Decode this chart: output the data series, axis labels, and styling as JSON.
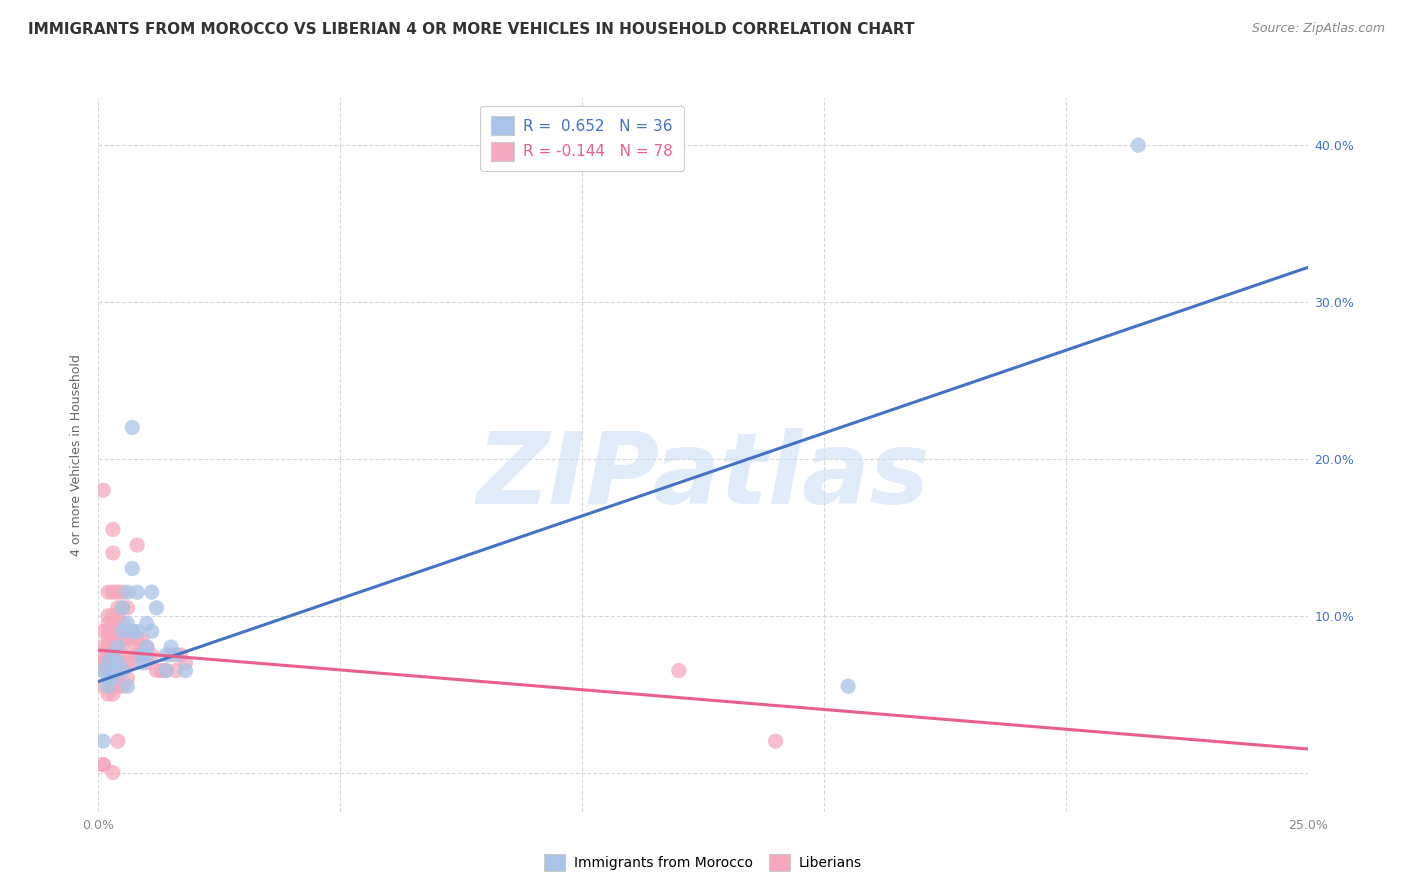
{
  "title": "IMMIGRANTS FROM MOROCCO VS LIBERIAN 4 OR MORE VEHICLES IN HOUSEHOLD CORRELATION CHART",
  "source": "Source: ZipAtlas.com",
  "ylabel": "4 or more Vehicles in Household",
  "morocco_R": 0.652,
  "morocco_N": 36,
  "liberian_R": -0.144,
  "liberian_N": 78,
  "morocco_color": "#a8c4e8",
  "liberian_color": "#f5a8bc",
  "morocco_line_color": "#4472c4",
  "liberian_line_color": "#e8608a",
  "watermark": "ZIPatlas",
  "xlim": [
    0.0,
    0.25
  ],
  "ylim": [
    -0.025,
    0.43
  ],
  "xticks": [
    0.0,
    0.05,
    0.1,
    0.15,
    0.2,
    0.25
  ],
  "yticks": [
    0.0,
    0.1,
    0.2,
    0.3,
    0.4
  ],
  "morocco_scatter": [
    [
      0.001,
      0.065
    ],
    [
      0.002,
      0.07
    ],
    [
      0.002,
      0.06
    ],
    [
      0.002,
      0.055
    ],
    [
      0.003,
      0.075
    ],
    [
      0.003,
      0.06
    ],
    [
      0.003,
      0.065
    ],
    [
      0.004,
      0.08
    ],
    [
      0.004,
      0.07
    ],
    [
      0.005,
      0.105
    ],
    [
      0.005,
      0.09
    ],
    [
      0.005,
      0.065
    ],
    [
      0.006,
      0.115
    ],
    [
      0.006,
      0.095
    ],
    [
      0.006,
      0.055
    ],
    [
      0.007,
      0.22
    ],
    [
      0.007,
      0.13
    ],
    [
      0.007,
      0.09
    ],
    [
      0.008,
      0.115
    ],
    [
      0.008,
      0.09
    ],
    [
      0.009,
      0.075
    ],
    [
      0.009,
      0.07
    ],
    [
      0.01,
      0.095
    ],
    [
      0.01,
      0.08
    ],
    [
      0.01,
      0.075
    ],
    [
      0.011,
      0.115
    ],
    [
      0.011,
      0.09
    ],
    [
      0.012,
      0.105
    ],
    [
      0.014,
      0.075
    ],
    [
      0.014,
      0.065
    ],
    [
      0.015,
      0.08
    ],
    [
      0.016,
      0.075
    ],
    [
      0.018,
      0.065
    ],
    [
      0.155,
      0.055
    ],
    [
      0.001,
      0.02
    ],
    [
      0.215,
      0.4
    ]
  ],
  "liberian_scatter": [
    [
      0.001,
      0.18
    ],
    [
      0.001,
      0.09
    ],
    [
      0.001,
      0.08
    ],
    [
      0.001,
      0.075
    ],
    [
      0.001,
      0.07
    ],
    [
      0.001,
      0.07
    ],
    [
      0.001,
      0.065
    ],
    [
      0.001,
      0.055
    ],
    [
      0.002,
      0.115
    ],
    [
      0.002,
      0.1
    ],
    [
      0.002,
      0.095
    ],
    [
      0.002,
      0.09
    ],
    [
      0.002,
      0.085
    ],
    [
      0.002,
      0.08
    ],
    [
      0.002,
      0.075
    ],
    [
      0.002,
      0.07
    ],
    [
      0.002,
      0.065
    ],
    [
      0.002,
      0.05
    ],
    [
      0.003,
      0.155
    ],
    [
      0.003,
      0.14
    ],
    [
      0.003,
      0.115
    ],
    [
      0.003,
      0.1
    ],
    [
      0.003,
      0.095
    ],
    [
      0.003,
      0.09
    ],
    [
      0.003,
      0.085
    ],
    [
      0.003,
      0.08
    ],
    [
      0.003,
      0.075
    ],
    [
      0.003,
      0.07
    ],
    [
      0.003,
      0.065
    ],
    [
      0.003,
      0.06
    ],
    [
      0.003,
      0.055
    ],
    [
      0.003,
      0.05
    ],
    [
      0.004,
      0.115
    ],
    [
      0.004,
      0.105
    ],
    [
      0.004,
      0.1
    ],
    [
      0.004,
      0.09
    ],
    [
      0.004,
      0.085
    ],
    [
      0.004,
      0.08
    ],
    [
      0.004,
      0.075
    ],
    [
      0.004,
      0.065
    ],
    [
      0.004,
      0.06
    ],
    [
      0.004,
      0.055
    ],
    [
      0.004,
      0.02
    ],
    [
      0.005,
      0.115
    ],
    [
      0.005,
      0.105
    ],
    [
      0.005,
      0.095
    ],
    [
      0.005,
      0.085
    ],
    [
      0.005,
      0.075
    ],
    [
      0.005,
      0.065
    ],
    [
      0.005,
      0.055
    ],
    [
      0.006,
      0.105
    ],
    [
      0.006,
      0.09
    ],
    [
      0.006,
      0.085
    ],
    [
      0.006,
      0.07
    ],
    [
      0.006,
      0.06
    ],
    [
      0.007,
      0.09
    ],
    [
      0.007,
      0.08
    ],
    [
      0.007,
      0.07
    ],
    [
      0.008,
      0.145
    ],
    [
      0.008,
      0.085
    ],
    [
      0.008,
      0.075
    ],
    [
      0.009,
      0.085
    ],
    [
      0.009,
      0.075
    ],
    [
      0.01,
      0.08
    ],
    [
      0.01,
      0.07
    ],
    [
      0.011,
      0.075
    ],
    [
      0.012,
      0.065
    ],
    [
      0.013,
      0.065
    ],
    [
      0.014,
      0.065
    ],
    [
      0.015,
      0.075
    ],
    [
      0.016,
      0.065
    ],
    [
      0.017,
      0.075
    ],
    [
      0.018,
      0.07
    ],
    [
      0.12,
      0.065
    ],
    [
      0.001,
      0.005
    ],
    [
      0.001,
      0.005
    ],
    [
      0.14,
      0.02
    ],
    [
      0.003,
      0.0
    ]
  ],
  "morocco_line": [
    [
      0.0,
      0.058
    ],
    [
      0.25,
      0.322
    ]
  ],
  "liberian_line": [
    [
      0.0,
      0.078
    ],
    [
      0.25,
      0.015
    ]
  ],
  "grid_color": "#d8d8d8",
  "background_color": "#ffffff",
  "title_fontsize": 11,
  "legend_fontsize": 11,
  "axis_label_fontsize": 9,
  "tick_fontsize": 9
}
